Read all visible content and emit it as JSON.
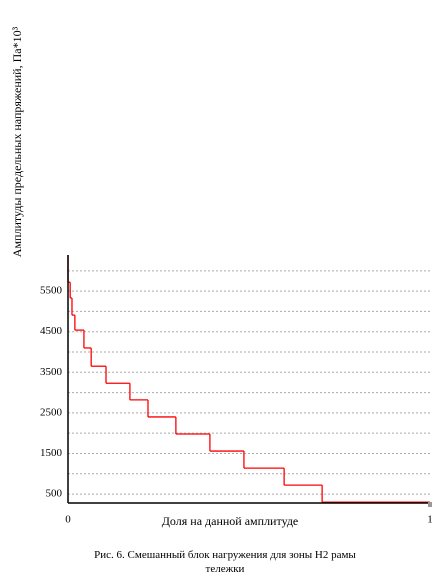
{
  "chart_data": {
    "type": "step",
    "y_label": "Амплитуды предельных напряжений, Па*10³",
    "x_label": "Доля на данной амплитуде",
    "x": [
      0,
      0.006,
      0.011,
      0.019,
      0.044,
      0.064,
      0.105,
      0.171,
      0.221,
      0.298,
      0.392,
      0.486,
      0.597,
      0.702
    ],
    "values": [
      5720,
      5330,
      4910,
      4540,
      4100,
      3650,
      3230,
      2820,
      2400,
      1980,
      1560,
      1140,
      720,
      300
    ],
    "color": "#ff0000",
    "xlim": [
      0,
      1
    ],
    "xticks": [
      0,
      1
    ],
    "ylim": [
      280,
      6390
    ],
    "yticks": [
      500,
      1500,
      2500,
      3500,
      4500,
      5500
    ],
    "minor_yticks": [
      1000,
      2000,
      3000,
      4000,
      5000,
      6000
    ],
    "grid": true
  },
  "caption": "Рис. 6. Смешанный блок нагружения для зоны Н2 рамы тележки"
}
